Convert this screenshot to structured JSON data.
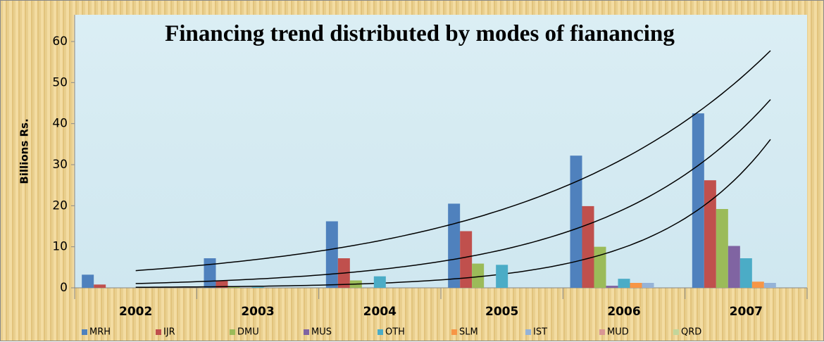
{
  "chart_data": {
    "type": "bar",
    "title": "Financing trend distributed by modes of fianancing",
    "y_label": "Billions Rs.",
    "categories": [
      "2002",
      "2003",
      "2004",
      "2005",
      "2006",
      "2007"
    ],
    "series": [
      {
        "name": "MRH",
        "color": "#4f81bd",
        "values": [
          3.2,
          7.2,
          16.2,
          20.5,
          32.2,
          42.5
        ],
        "trendline": "exponential"
      },
      {
        "name": "IJR",
        "color": "#c0504d",
        "values": [
          0.8,
          1.7,
          7.2,
          13.8,
          19.9,
          26.2
        ],
        "trendline": "exponential"
      },
      {
        "name": "DMU",
        "color": "#9bbb59",
        "values": [
          0,
          0.2,
          1.8,
          5.9,
          10,
          19.2
        ],
        "trendline": "exponential"
      },
      {
        "name": "MUS",
        "color": "#8064a2",
        "values": [
          0,
          0,
          0,
          0,
          0.5,
          10.2
        ]
      },
      {
        "name": "OTH",
        "color": "#4bacc6",
        "values": [
          0,
          0.2,
          2.8,
          5.6,
          2.2,
          7.2
        ]
      },
      {
        "name": "SLM",
        "color": "#f79646",
        "values": [
          0,
          0,
          0,
          0,
          1.2,
          1.5
        ]
      },
      {
        "name": "IST",
        "color": "#95b3d7",
        "values": [
          0,
          0,
          0,
          0,
          1.2,
          1.2
        ]
      },
      {
        "name": "MUD",
        "color": "#d99694",
        "values": [
          0,
          0,
          0,
          0,
          0,
          0
        ]
      },
      {
        "name": "QRD",
        "color": "#c3d69b",
        "values": [
          0,
          0,
          0,
          0,
          0,
          0
        ]
      }
    ],
    "ylim": [
      0,
      60
    ],
    "yticks": [
      0,
      10,
      20,
      30,
      40,
      50,
      60
    ],
    "grid": false,
    "legend": "bottom"
  }
}
